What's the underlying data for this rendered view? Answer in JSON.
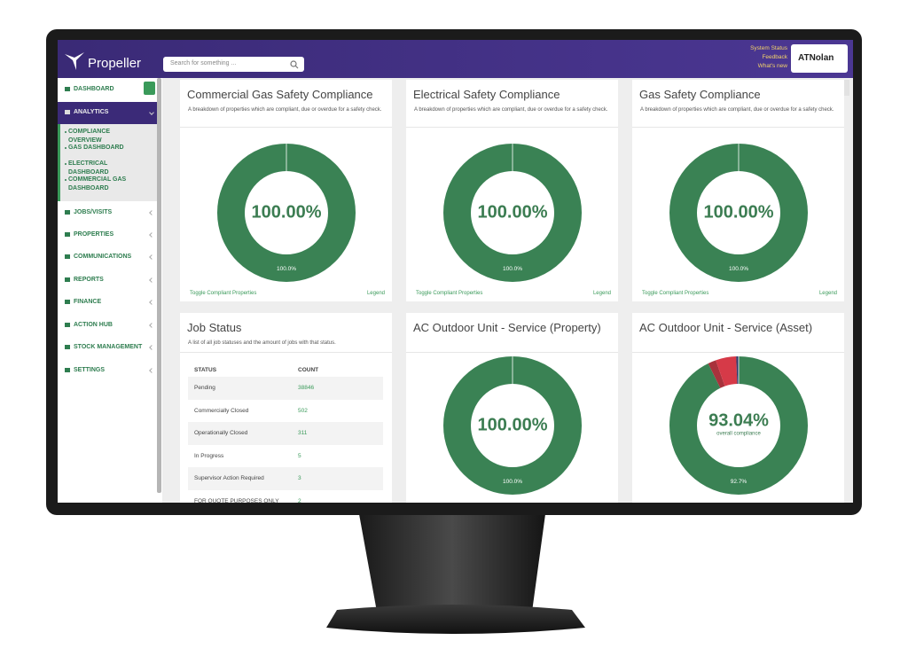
{
  "header": {
    "logo": "Propeller",
    "search_placeholder": "Search for something ...",
    "links": [
      "System Status",
      "Feedback",
      "What's new"
    ],
    "client_logo": "ATNolan"
  },
  "sidebar": {
    "items": [
      "DASHBOARD",
      "ANALYTICS",
      "JOBS/VISITS",
      "PROPERTIES",
      "COMMUNICATIONS",
      "REPORTS",
      "FINANCE",
      "ACTION HUB",
      "STOCK MANAGEMENT",
      "SETTINGS"
    ],
    "analytics_children": [
      "COMPLIANCE OVERVIEW",
      "GAS DASHBOARD",
      "ELECTRICAL DASHBOARD",
      "COMMERCIAL GAS DASHBOARD"
    ]
  },
  "cards": [
    {
      "title": "Commercial Gas Safety Compliance",
      "subtitle": "A breakdown of properties which are compliant, due or overdue for a safety check.",
      "chart": {
        "type": "donut",
        "center_label": "100.00%",
        "segments": [
          {
            "value": 100,
            "label": "100.0%",
            "color": "#3a8254"
          }
        ]
      },
      "footer_left": "Toggle Compliant Properties",
      "footer_right": "Legend"
    },
    {
      "title": "Electrical Safety Compliance",
      "subtitle": "A breakdown of properties which are compliant, due or overdue for a safety check.",
      "chart": {
        "type": "donut",
        "center_label": "100.00%",
        "segments": [
          {
            "value": 100,
            "label": "100.0%",
            "color": "#3a8254"
          }
        ]
      },
      "footer_left": "Toggle Compliant Properties",
      "footer_right": "Legend"
    },
    {
      "title": "Gas Safety Compliance",
      "subtitle": "A breakdown of properties which are compliant, due or overdue for a safety check.",
      "chart": {
        "type": "donut",
        "center_label": "100.00%",
        "segments": [
          {
            "value": 100,
            "label": "100.0%",
            "color": "#3a8254"
          }
        ]
      },
      "footer_left": "Toggle Compliant Properties",
      "footer_right": "Legend"
    },
    {
      "title": "Job Status",
      "subtitle": "A list of all job statuses and the amount of jobs with that status.",
      "table": {
        "columns": [
          "STATUS",
          "COUNT"
        ],
        "rows": [
          [
            "Pending",
            38846
          ],
          [
            "Commercially Closed",
            502
          ],
          [
            "Operationally Closed",
            311
          ],
          [
            "In Progress",
            5
          ],
          [
            "Supervisor Action Required",
            3
          ],
          [
            "FOR QUOTE PURPOSES ONLY",
            2
          ]
        ]
      }
    },
    {
      "title": "AC Outdoor Unit - Service (Property)",
      "chart": {
        "type": "donut",
        "center_label": "100.00%",
        "segments": [
          {
            "value": 100,
            "label": "100.0%",
            "color": "#3a8254"
          }
        ]
      }
    },
    {
      "title": "AC Outdoor Unit - Service (Asset)",
      "chart": {
        "type": "donut",
        "center_label": "93.04%",
        "center_sublabel": "overall compliance",
        "segments": [
          {
            "value": 92.7,
            "label": "92.7%",
            "color": "#3a8254"
          },
          {
            "value": 1.9,
            "color": "#a8323c"
          },
          {
            "value": 4.8,
            "color": "#d63a48"
          },
          {
            "value": 0.6,
            "color": "#2a3a6a"
          }
        ]
      }
    }
  ]
}
